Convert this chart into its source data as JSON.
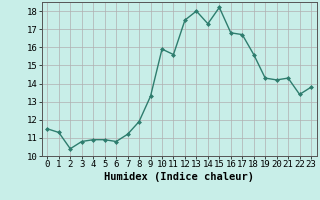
{
  "x": [
    0,
    1,
    2,
    3,
    4,
    5,
    6,
    7,
    8,
    9,
    10,
    11,
    12,
    13,
    14,
    15,
    16,
    17,
    18,
    19,
    20,
    21,
    22,
    23
  ],
  "y": [
    11.5,
    11.3,
    10.4,
    10.8,
    10.9,
    10.9,
    10.8,
    11.2,
    11.9,
    13.3,
    15.9,
    15.6,
    17.5,
    18.0,
    17.3,
    18.2,
    16.8,
    16.7,
    15.6,
    14.3,
    14.2,
    14.3,
    13.4,
    13.8
  ],
  "line_color": "#2e7d6e",
  "marker": "D",
  "marker_size": 2.0,
  "bg_color": "#c8eee8",
  "grid_color": "#b0b0b0",
  "xlabel": "Humidex (Indice chaleur)",
  "ylim": [
    10,
    18.5
  ],
  "xlim": [
    -0.5,
    23.5
  ],
  "yticks": [
    10,
    11,
    12,
    13,
    14,
    15,
    16,
    17,
    18
  ],
  "xticks": [
    0,
    1,
    2,
    3,
    4,
    5,
    6,
    7,
    8,
    9,
    10,
    11,
    12,
    13,
    14,
    15,
    16,
    17,
    18,
    19,
    20,
    21,
    22,
    23
  ],
  "xtick_labels": [
    "0",
    "1",
    "2",
    "3",
    "4",
    "5",
    "6",
    "7",
    "8",
    "9",
    "10",
    "11",
    "12",
    "13",
    "14",
    "15",
    "16",
    "17",
    "18",
    "19",
    "20",
    "21",
    "22",
    "23"
  ],
  "xlabel_fontsize": 7.5,
  "tick_fontsize": 6.5,
  "linewidth": 1.0
}
